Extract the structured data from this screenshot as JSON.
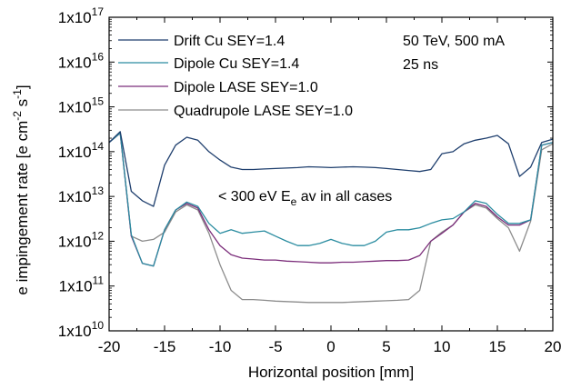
{
  "chart_data": {
    "type": "line",
    "xlabel": "Horizontal position [mm]",
    "ylabel": "e impingement rate [e cm-2 s-1]",
    "ylabel_parts": {
      "base": "e impingement rate [e cm",
      "exp1": "-2",
      "mid": " s",
      "exp2": "-1",
      "end": "]"
    },
    "xlim": [
      -20,
      20
    ],
    "ylim": [
      10000000000.0,
      1e+17
    ],
    "y_scale": "log",
    "grid": false,
    "legend_position": "top-left",
    "x_ticks": [
      -20,
      -15,
      -10,
      -5,
      0,
      5,
      10,
      15,
      20
    ],
    "y_ticks": [
      {
        "value": 10000000000.0,
        "base": "1x10",
        "exp": "10"
      },
      {
        "value": 100000000000.0,
        "base": "1x10",
        "exp": "11"
      },
      {
        "value": 1000000000000.0,
        "base": "1x10",
        "exp": "12"
      },
      {
        "value": 10000000000000.0,
        "base": "1x10",
        "exp": "13"
      },
      {
        "value": 100000000000000.0,
        "base": "1x10",
        "exp": "14"
      },
      {
        "value": 1000000000000000.0,
        "base": "1x10",
        "exp": "15"
      },
      {
        "value": 1e+16,
        "base": "1x10",
        "exp": "16"
      },
      {
        "value": 1e+17,
        "base": "1x10",
        "exp": "17"
      }
    ],
    "x": [
      -20,
      -19,
      -18,
      -17,
      -16,
      -15,
      -14,
      -13,
      -12,
      -11,
      -10,
      -9,
      -8,
      -7,
      -6,
      -5,
      -4,
      -3,
      -2,
      -1,
      0,
      1,
      2,
      3,
      4,
      5,
      6,
      7,
      8,
      9,
      10,
      11,
      12,
      13,
      14,
      15,
      16,
      17,
      18,
      19,
      20
    ],
    "series": [
      {
        "name": "Drift Cu SEY=1.4",
        "color": "#1f3f6e",
        "values": [
          160000000000000.0,
          280000000000000.0,
          13000000000000.0,
          8000000000000.0,
          6000000000000.0,
          50000000000000.0,
          140000000000000.0,
          210000000000000.0,
          180000000000000.0,
          100000000000000.0,
          65000000000000.0,
          45000000000000.0,
          40000000000000.0,
          40000000000000.0,
          41000000000000.0,
          42000000000000.0,
          43000000000000.0,
          44000000000000.0,
          46000000000000.0,
          45000000000000.0,
          44000000000000.0,
          45000000000000.0,
          46000000000000.0,
          45000000000000.0,
          44000000000000.0,
          42000000000000.0,
          40000000000000.0,
          38000000000000.0,
          36000000000000.0,
          40000000000000.0,
          90000000000000.0,
          100000000000000.0,
          150000000000000.0,
          180000000000000.0,
          200000000000000.0,
          230000000000000.0,
          150000000000000.0,
          28000000000000.0,
          45000000000000.0,
          160000000000000.0,
          190000000000000.0
        ]
      },
      {
        "name": "Dipole Cu SEY=1.4",
        "color": "#2a8ca0",
        "values": [
          160000000000000.0,
          260000000000000.0,
          1400000000000.0,
          320000000000.0,
          280000000000.0,
          1800000000000.0,
          5000000000000.0,
          7500000000000.0,
          6000000000000.0,
          2500000000000.0,
          1500000000000.0,
          1800000000000.0,
          1500000000000.0,
          1600000000000.0,
          1700000000000.0,
          1300000000000.0,
          1000000000000.0,
          800000000000.0,
          800000000000.0,
          900000000000.0,
          1100000000000.0,
          900000000000.0,
          800000000000.0,
          800000000000.0,
          1000000000000.0,
          1600000000000.0,
          1800000000000.0,
          1800000000000.0,
          2000000000000.0,
          2500000000000.0,
          3000000000000.0,
          3200000000000.0,
          4500000000000.0,
          8000000000000.0,
          7000000000000.0,
          4000000000000.0,
          2500000000000.0,
          2500000000000.0,
          3000000000000.0,
          140000000000000.0,
          160000000000000.0
        ]
      },
      {
        "name": "Dipole LASE SEY=1.0",
        "color": "#7b2d7a",
        "values": [
          160000000000000.0,
          260000000000000.0,
          1300000000000.0,
          320000000000.0,
          280000000000.0,
          1800000000000.0,
          5000000000000.0,
          7000000000000.0,
          5500000000000.0,
          1800000000000.0,
          800000000000.0,
          500000000000.0,
          420000000000.0,
          400000000000.0,
          380000000000.0,
          380000000000.0,
          360000000000.0,
          350000000000.0,
          340000000000.0,
          330000000000.0,
          330000000000.0,
          340000000000.0,
          340000000000.0,
          350000000000.0,
          360000000000.0,
          370000000000.0,
          370000000000.0,
          380000000000.0,
          480000000000.0,
          1000000000000.0,
          1500000000000.0,
          2300000000000.0,
          4500000000000.0,
          7000000000000.0,
          6000000000000.0,
          3500000000000.0,
          2300000000000.0,
          2300000000000.0,
          3000000000000.0,
          140000000000000.0,
          160000000000000.0
        ]
      },
      {
        "name": "Quadrupole LASE SEY=1.0",
        "color": "#8c8c8c",
        "values": [
          160000000000000.0,
          260000000000000.0,
          1300000000000.0,
          1000000000000.0,
          1100000000000.0,
          1600000000000.0,
          4500000000000.0,
          6500000000000.0,
          5000000000000.0,
          1500000000000.0,
          300000000000.0,
          80000000000.0,
          50000000000.0,
          50000000000.0,
          48000000000.0,
          46000000000.0,
          45000000000.0,
          44000000000.0,
          43000000000.0,
          43000000000.0,
          43000000000.0,
          43000000000.0,
          44000000000.0,
          45000000000.0,
          46000000000.0,
          47000000000.0,
          48000000000.0,
          50000000000.0,
          80000000000.0,
          1000000000000.0,
          1600000000000.0,
          2300000000000.0,
          4500000000000.0,
          6500000000000.0,
          5500000000000.0,
          3200000000000.0,
          2000000000000.0,
          600000000000.0,
          2800000000000.0,
          110000000000000.0,
          150000000000000.0
        ]
      }
    ],
    "annotations": {
      "top_right_line1": "50 TeV, 500 mA",
      "top_right_line2": "25 ns",
      "center_text": {
        "pre": "< 300 eV E",
        "sub": "e",
        "post": " av in all cases"
      }
    }
  }
}
